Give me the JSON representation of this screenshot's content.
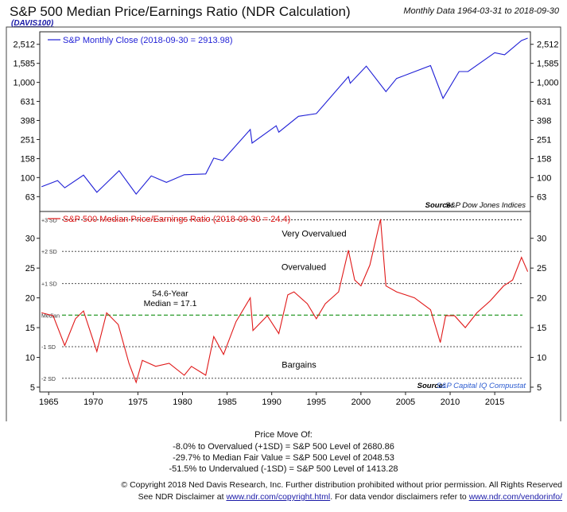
{
  "header": {
    "title": "S&P 500 Median Price/Earnings Ratio (NDR Calculation)",
    "subtitle": "Monthly Data 1964-03-31 to 2018-09-30",
    "code": "(DAVIS100)"
  },
  "chart_data": [
    {
      "type": "line",
      "log_scale": true,
      "legend": "S&P Monthly Close (2018-09-30 = 2913.98)",
      "legend_position": "top-left",
      "color": "#1f1fd6",
      "yticks": [
        2512,
        1585,
        1000,
        631,
        398,
        251,
        158,
        100,
        63
      ],
      "ytick_labels": [
        "2,512",
        "1,585",
        "1,000",
        "631",
        "398",
        "251",
        "158",
        "100",
        "63"
      ],
      "ylim": [
        44,
        3400
      ],
      "source_label": "Source:",
      "source": "S&P Dow Jones Indices",
      "series": [
        {
          "x": [
            1964.2,
            1966.0,
            1966.8,
            1968.9,
            1970.4,
            1972.9,
            1974.8,
            1976.5,
            1978.2,
            1980.2,
            1982.6,
            1983.5,
            1984.5,
            1987.6,
            1987.8,
            1990.5,
            1990.8,
            1993.0,
            1995.0,
            1998.6,
            1998.8,
            2000.6,
            2002.8,
            2004.0,
            2007.8,
            2009.2,
            2011.0,
            2012.0,
            2015.0,
            2016.1,
            2018.0,
            2018.7
          ],
          "values": [
            80,
            93,
            78,
            106,
            70,
            118,
            67,
            104,
            89,
            107,
            109,
            160,
            151,
            320,
            230,
            350,
            300,
            440,
            470,
            1150,
            980,
            1480,
            800,
            1100,
            1500,
            680,
            1300,
            1300,
            2050,
            1950,
            2750,
            2914
          ]
        }
      ]
    },
    {
      "type": "line",
      "legend": "S&P 500 Median Price/Earnings Ratio (2018-09-30 = 24.4)",
      "legend_position": "top-left",
      "color": "#e01818",
      "yticks": [
        5,
        10,
        15,
        20,
        25,
        30
      ],
      "ylim": [
        4.2,
        34.5
      ],
      "xlim": [
        1964,
        2019
      ],
      "xticks": [
        1965,
        1970,
        1975,
        1980,
        1985,
        1990,
        1995,
        2000,
        2005,
        2010,
        2015
      ],
      "sd_lines": [
        {
          "label": "+3 SD",
          "value": 33.1
        },
        {
          "label": "+2 SD",
          "value": 27.8
        },
        {
          "label": "+1 SD",
          "value": 22.4
        },
        {
          "label": "Median",
          "value": 17.1
        },
        {
          "label": "-1 SD",
          "value": 11.8
        },
        {
          "label": "-2 SD",
          "value": 6.5
        }
      ],
      "median_annotation": [
        "54.6-Year",
        "Median = 17.1"
      ],
      "zones": [
        "Very Overvalued",
        "Overvalued",
        "Bargains"
      ],
      "source_label": "Source:",
      "source": "S&P Capital IQ Compustat",
      "series": [
        {
          "x": [
            1964.2,
            1965.5,
            1966.8,
            1968.0,
            1968.9,
            1970.4,
            1971.5,
            1972.8,
            1974.0,
            1974.8,
            1975.5,
            1977.0,
            1978.5,
            1980.2,
            1981.0,
            1982.6,
            1983.5,
            1984.6,
            1986.0,
            1987.6,
            1987.9,
            1989.5,
            1990.8,
            1991.8,
            1992.5,
            1994.0,
            1995.0,
            1996.0,
            1997.5,
            1998.6,
            1999.3,
            2000.0,
            2001.0,
            2002.2,
            2002.8,
            2004.0,
            2006.0,
            2007.8,
            2008.9,
            2009.5,
            2010.5,
            2011.7,
            2013.0,
            2014.5,
            2016.0,
            2017.0,
            2018.0,
            2018.7
          ],
          "values": [
            17.5,
            17.0,
            12.0,
            16.5,
            17.8,
            11.0,
            17.5,
            15.5,
            9.0,
            5.8,
            9.5,
            8.5,
            9.0,
            7.0,
            8.5,
            7.0,
            13.5,
            10.5,
            16.0,
            20.0,
            14.5,
            17.0,
            14.0,
            20.5,
            21.0,
            19.0,
            16.5,
            19.0,
            21.0,
            28.0,
            23.0,
            22.0,
            25.5,
            33.2,
            22.0,
            21.0,
            20.0,
            18.0,
            12.5,
            17.0,
            17.0,
            15.0,
            17.5,
            19.5,
            22.0,
            23.0,
            26.8,
            24.4
          ]
        }
      ]
    }
  ],
  "footer": {
    "heading": "Price Move Of:",
    "lines": [
      "-8.0% to Overvalued (+1SD) = S&P 500 Level of 2680.86",
      "-29.7% to Median Fair Value = S&P 500 Level of 2048.53",
      "-51.5% to Undervalued (-1SD) = S&P 500 Level of 1413.28"
    ],
    "copyright": "© Copyright 2018 Ned Davis Research, Inc. Further distribution prohibited without prior permission. All Rights Reserved",
    "disclaimer_prefix": "See NDR Disclaimer at ",
    "disclaimer_link": "www.ndr.com/copyright.html",
    "disclaimer_mid": ". For data vendor disclaimers refer to ",
    "vendor_link": "www.ndr.com/vendorinfo/"
  }
}
